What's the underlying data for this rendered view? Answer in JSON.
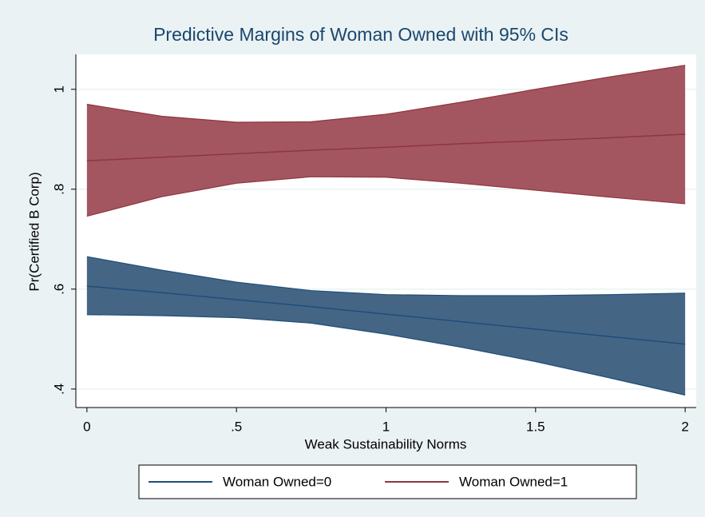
{
  "chart_data": {
    "type": "line",
    "title": "Predictive Margins of Woman Owned with 95% CIs",
    "x_label": "Weak Sustainability Norms",
    "y_label": "Pr(Certified B Corp)",
    "x": [
      0,
      0.25,
      0.5,
      0.75,
      1,
      1.25,
      1.5,
      1.75,
      2
    ],
    "series": [
      {
        "name": "Woman Owned=0",
        "color": "#1f4e79",
        "fill": "#456585",
        "values": [
          0.606,
          0.593,
          0.579,
          0.565,
          0.55,
          0.535,
          0.52,
          0.505,
          0.49
        ],
        "upper": [
          0.665,
          0.638,
          0.614,
          0.597,
          0.589,
          0.587,
          0.587,
          0.589,
          0.592
        ],
        "lower": [
          0.549,
          0.547,
          0.543,
          0.532,
          0.51,
          0.484,
          0.455,
          0.422,
          0.388
        ]
      },
      {
        "name": "Woman Owned=1",
        "color": "#90353b",
        "fill": "#a35660",
        "values": [
          0.857,
          0.864,
          0.871,
          0.878,
          0.884,
          0.891,
          0.897,
          0.903,
          0.91
        ],
        "upper": [
          0.97,
          0.946,
          0.934,
          0.935,
          0.95,
          0.974,
          1.0,
          1.025,
          1.048
        ],
        "lower": [
          0.746,
          0.785,
          0.812,
          0.825,
          0.824,
          0.812,
          0.798,
          0.784,
          0.771
        ]
      }
    ],
    "xlim": [
      -0.037,
      2.037
    ],
    "ylim": [
      0.363,
      1.07
    ],
    "xticks": [
      0,
      {
        "value": 0.5,
        "label": ".5"
      },
      1,
      1.5,
      2
    ],
    "yticks": [
      {
        "value": 0.4,
        "label": ".4"
      },
      {
        "value": 0.6,
        "label": ".6"
      },
      {
        "value": 0.8,
        "label": ".8"
      },
      1
    ],
    "grid": true,
    "legend": "bottom"
  }
}
